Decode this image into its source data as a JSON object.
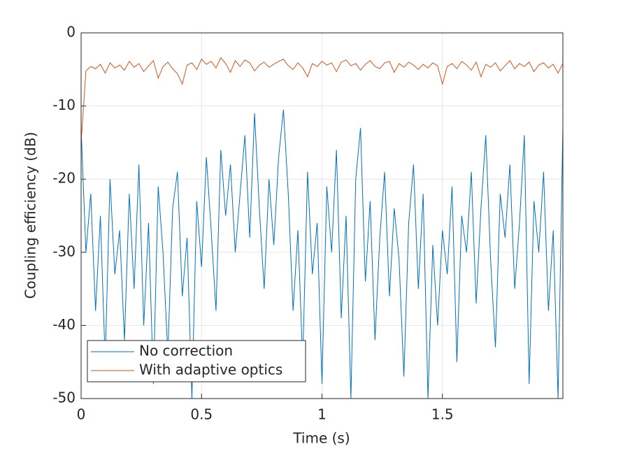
{
  "chart_data": {
    "type": "line",
    "xlabel": "Time (s)",
    "ylabel": "Coupling efficiency (dB)",
    "x": [
      0,
      0.02,
      0.04,
      0.06,
      0.08,
      0.1,
      0.12,
      0.14,
      0.16,
      0.18,
      0.2,
      0.22,
      0.24,
      0.26,
      0.28,
      0.3,
      0.32,
      0.34,
      0.36,
      0.38,
      0.4,
      0.42,
      0.44,
      0.46,
      0.48,
      0.5,
      0.52,
      0.54,
      0.56,
      0.58,
      0.6,
      0.62,
      0.64,
      0.66,
      0.68,
      0.7,
      0.72,
      0.74,
      0.76,
      0.78,
      0.8,
      0.82,
      0.84,
      0.86,
      0.88,
      0.9,
      0.92,
      0.94,
      0.96,
      0.98,
      1,
      1.02,
      1.04,
      1.06,
      1.08,
      1.1,
      1.12,
      1.14,
      1.16,
      1.18,
      1.2,
      1.22,
      1.24,
      1.26,
      1.28,
      1.3,
      1.32,
      1.34,
      1.36,
      1.38,
      1.4,
      1.42,
      1.44,
      1.46,
      1.48,
      1.5,
      1.52,
      1.54,
      1.56,
      1.58,
      1.6,
      1.62,
      1.64,
      1.66,
      1.68,
      1.7,
      1.72,
      1.74,
      1.76,
      1.78,
      1.8,
      1.82,
      1.84,
      1.86,
      1.88,
      1.9,
      1.92,
      1.94,
      1.96,
      1.98,
      2
    ],
    "series": [
      {
        "name": "No correction",
        "color": "#0072bd",
        "values": [
          -13,
          -30,
          -22,
          -38,
          -25,
          -45,
          -20,
          -33,
          -27,
          -42,
          -22,
          -35,
          -18,
          -40,
          -26,
          -48,
          -21,
          -30,
          -44,
          -24,
          -19,
          -36,
          -28,
          -50,
          -23,
          -32,
          -17,
          -27,
          -38,
          -16,
          -25,
          -18,
          -30,
          -22,
          -14,
          -28,
          -11,
          -24,
          -35,
          -20,
          -29,
          -17,
          -10.5,
          -22,
          -38,
          -27,
          -45,
          -19,
          -33,
          -26,
          -48,
          -21,
          -30,
          -16,
          -39,
          -25,
          -50,
          -20,
          -13,
          -34,
          -23,
          -42,
          -28,
          -19,
          -36,
          -24,
          -31,
          -47,
          -26,
          -18,
          -35,
          -22,
          -50,
          -29,
          -40,
          -27,
          -33,
          -21,
          -45,
          -25,
          -30,
          -19,
          -37,
          -24,
          -14,
          -31,
          -43,
          -22,
          -28,
          -18,
          -35,
          -26,
          -14,
          -48,
          -23,
          -30,
          -19,
          -38,
          -27,
          -50,
          -13
        ]
      },
      {
        "name": "With adaptive optics",
        "color": "#d95319",
        "values": [
          -15,
          -5.2,
          -4.6,
          -4.9,
          -4.3,
          -5.5,
          -4.1,
          -4.8,
          -4.4,
          -5.1,
          -3.9,
          -4.7,
          -4.2,
          -5.3,
          -4.5,
          -3.8,
          -6.2,
          -4.6,
          -4.0,
          -4.9,
          -5.6,
          -7.0,
          -4.4,
          -4.1,
          -5.0,
          -3.6,
          -4.3,
          -3.9,
          -4.8,
          -3.4,
          -4.2,
          -5.4,
          -3.8,
          -4.6,
          -3.7,
          -4.1,
          -5.2,
          -4.4,
          -4.0,
          -4.7,
          -4.3,
          -3.9,
          -3.6,
          -4.5,
          -5.0,
          -4.1,
          -4.8,
          -6.0,
          -4.2,
          -4.6,
          -3.9,
          -4.4,
          -4.1,
          -5.3,
          -4.0,
          -3.7,
          -4.5,
          -4.2,
          -5.1,
          -4.3,
          -3.8,
          -4.6,
          -4.9,
          -4.1,
          -3.9,
          -5.4,
          -4.2,
          -4.7,
          -4.0,
          -4.4,
          -5.0,
          -4.3,
          -4.8,
          -4.1,
          -4.5,
          -7.0,
          -4.6,
          -4.2,
          -4.9,
          -3.9,
          -4.4,
          -5.1,
          -4.0,
          -6.0,
          -4.3,
          -4.7,
          -4.1,
          -5.2,
          -4.5,
          -3.8,
          -4.9,
          -4.2,
          -4.6,
          -4.0,
          -5.3,
          -4.4,
          -4.1,
          -4.8,
          -4.3,
          -5.5,
          -4.2
        ]
      }
    ],
    "xlim": [
      0,
      2
    ],
    "xticks": [
      0,
      0.5,
      1,
      1.5
    ],
    "ylim": [
      -50,
      0
    ],
    "yticks": [
      -50,
      -40,
      -30,
      -20,
      -10,
      0
    ],
    "grid": true,
    "legend": "lower left"
  }
}
